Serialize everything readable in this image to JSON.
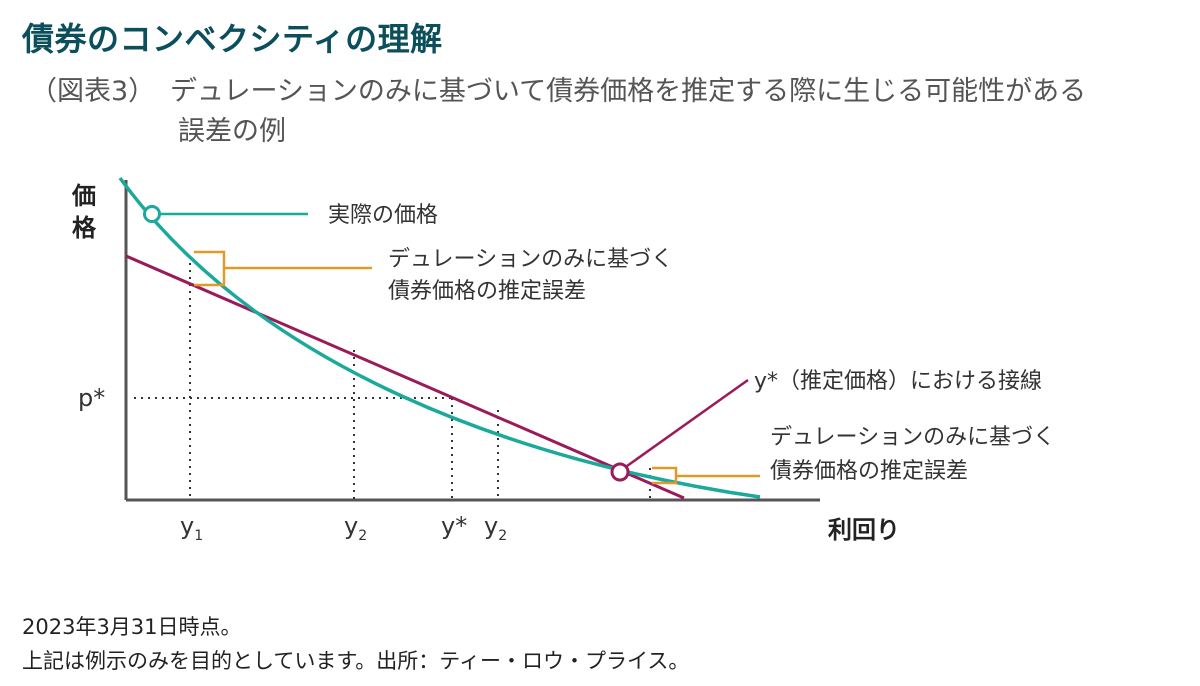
{
  "header": {
    "title": "債券のコンベクシティの理解",
    "subtitle_prefix": "（図表3）",
    "subtitle_line1": "デュレーションのみに基づいて債券価格を推定する際に生じる可能性がある",
    "subtitle_line2": "誤差の例"
  },
  "diagram": {
    "y_axis_label_1": "価",
    "y_axis_label_2": "格",
    "x_axis_label": "利回り",
    "p_star_label": "p*",
    "tick_y1": "y",
    "tick_y1_sub": "1",
    "tick_y2a": "y",
    "tick_y2a_sub": "2",
    "tick_ystar": "y*",
    "tick_y2b": "y",
    "tick_y2b_sub": "2",
    "label_actual_price": "実際の価格",
    "label_error_1_line1": "デュレーションのみに基づく",
    "label_error_1_line2": "債券価格の推定誤差",
    "label_tangent": "y*（推定価格）における接線",
    "label_error_2_line1": "デュレーションのみに基づく",
    "label_error_2_line2": "債券価格の推定誤差",
    "colors": {
      "curve": "#1aa99a",
      "tangent": "#9b1b5a",
      "error_bracket": "#e19a28",
      "axis": "#555555"
    }
  },
  "footer": {
    "line1": "2023年3月31日時点。",
    "line2": "上記は例示のみを目的としています。出所：ティー・ロウ・プライス。"
  }
}
